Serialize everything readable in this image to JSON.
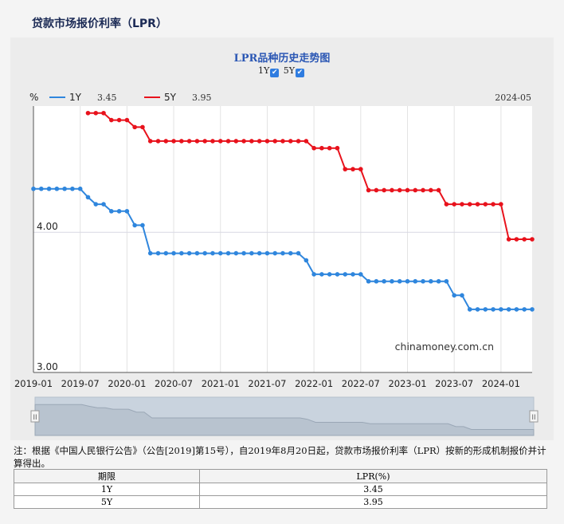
{
  "page": {
    "title": "贷款市场报价利率（LPR）"
  },
  "chart_data": {
    "type": "line",
    "title": "LPR品种历史走势图",
    "ylabel": "%",
    "ylim": [
      3.0,
      4.9
    ],
    "yticks": [
      {
        "value": 4.0,
        "label": "4.00"
      },
      {
        "value": 3.0,
        "label": "3.00"
      }
    ],
    "xlim": [
      "2019-01",
      "2024-05"
    ],
    "xticks": [
      "2019-01",
      "2019-07",
      "2020-01",
      "2020-07",
      "2021-01",
      "2021-07",
      "2022-01",
      "2022-07",
      "2023-01",
      "2023-07",
      "2024-01"
    ],
    "latest_date": "2024-05",
    "watermark": "chinamoney.com.cn",
    "grid": true,
    "legend_position": "top-left",
    "series": [
      {
        "name": "1Y",
        "latest": "3.45",
        "color": "#2f86dd",
        "x": [
          "2019-01",
          "2019-02",
          "2019-03",
          "2019-04",
          "2019-05",
          "2019-06",
          "2019-07",
          "2019-08",
          "2019-09",
          "2019-10",
          "2019-11",
          "2019-12",
          "2020-01",
          "2020-02",
          "2020-03",
          "2020-04",
          "2020-05",
          "2020-06",
          "2020-07",
          "2020-08",
          "2020-09",
          "2020-10",
          "2020-11",
          "2020-12",
          "2021-01",
          "2021-02",
          "2021-03",
          "2021-04",
          "2021-05",
          "2021-06",
          "2021-07",
          "2021-08",
          "2021-09",
          "2021-10",
          "2021-11",
          "2021-12",
          "2022-01",
          "2022-02",
          "2022-03",
          "2022-04",
          "2022-05",
          "2022-06",
          "2022-07",
          "2022-08",
          "2022-09",
          "2022-10",
          "2022-11",
          "2022-12",
          "2023-01",
          "2023-02",
          "2023-03",
          "2023-04",
          "2023-05",
          "2023-06",
          "2023-07",
          "2023-08",
          "2023-09",
          "2023-10",
          "2023-11",
          "2023-12",
          "2024-01",
          "2024-02",
          "2024-03",
          "2024-04",
          "2024-05"
        ],
        "values": [
          4.31,
          4.31,
          4.31,
          4.31,
          4.31,
          4.31,
          4.31,
          4.25,
          4.2,
          4.2,
          4.15,
          4.15,
          4.15,
          4.05,
          4.05,
          3.85,
          3.85,
          3.85,
          3.85,
          3.85,
          3.85,
          3.85,
          3.85,
          3.85,
          3.85,
          3.85,
          3.85,
          3.85,
          3.85,
          3.85,
          3.85,
          3.85,
          3.85,
          3.85,
          3.85,
          3.8,
          3.7,
          3.7,
          3.7,
          3.7,
          3.7,
          3.7,
          3.7,
          3.65,
          3.65,
          3.65,
          3.65,
          3.65,
          3.65,
          3.65,
          3.65,
          3.65,
          3.65,
          3.65,
          3.55,
          3.55,
          3.45,
          3.45,
          3.45,
          3.45,
          3.45,
          3.45,
          3.45,
          3.45,
          3.45
        ]
      },
      {
        "name": "5Y",
        "latest": "3.95",
        "color": "#e8121c",
        "x": [
          "2019-08",
          "2019-09",
          "2019-10",
          "2019-11",
          "2019-12",
          "2020-01",
          "2020-02",
          "2020-03",
          "2020-04",
          "2020-05",
          "2020-06",
          "2020-07",
          "2020-08",
          "2020-09",
          "2020-10",
          "2020-11",
          "2020-12",
          "2021-01",
          "2021-02",
          "2021-03",
          "2021-04",
          "2021-05",
          "2021-06",
          "2021-07",
          "2021-08",
          "2021-09",
          "2021-10",
          "2021-11",
          "2021-12",
          "2022-01",
          "2022-02",
          "2022-03",
          "2022-04",
          "2022-05",
          "2022-06",
          "2022-07",
          "2022-08",
          "2022-09",
          "2022-10",
          "2022-11",
          "2022-12",
          "2023-01",
          "2023-02",
          "2023-03",
          "2023-04",
          "2023-05",
          "2023-06",
          "2023-07",
          "2023-08",
          "2023-09",
          "2023-10",
          "2023-11",
          "2023-12",
          "2024-01",
          "2024-02",
          "2024-03",
          "2024-04",
          "2024-05"
        ],
        "values": [
          4.85,
          4.85,
          4.85,
          4.8,
          4.8,
          4.8,
          4.75,
          4.75,
          4.65,
          4.65,
          4.65,
          4.65,
          4.65,
          4.65,
          4.65,
          4.65,
          4.65,
          4.65,
          4.65,
          4.65,
          4.65,
          4.65,
          4.65,
          4.65,
          4.65,
          4.65,
          4.65,
          4.65,
          4.65,
          4.6,
          4.6,
          4.6,
          4.6,
          4.45,
          4.45,
          4.45,
          4.3,
          4.3,
          4.3,
          4.3,
          4.3,
          4.3,
          4.3,
          4.3,
          4.3,
          4.3,
          4.2,
          4.2,
          4.2,
          4.2,
          4.2,
          4.2,
          4.2,
          4.2,
          3.95,
          3.95,
          3.95,
          3.95
        ]
      }
    ]
  },
  "toggles": [
    {
      "label": "1Y",
      "checked": true
    },
    {
      "label": "5Y",
      "checked": true
    }
  ],
  "slider": {
    "left_handle": "II",
    "right_handle": "II"
  },
  "note": "注：根据《中国人民银行公告》（公告[2019]第15号），自2019年8月20日起，贷款市场报价利率（LPR）按新的形成机制报价并计算得出。",
  "table": {
    "headers": [
      "期限",
      "LPR(%)"
    ],
    "rows": [
      [
        "1Y",
        "3.45"
      ],
      [
        "5Y",
        "3.95"
      ]
    ]
  }
}
